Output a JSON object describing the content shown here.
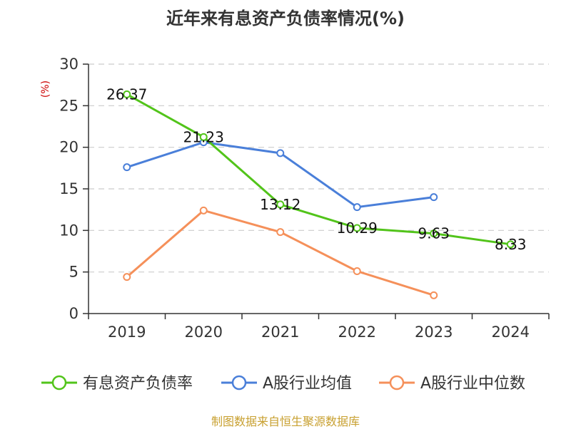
{
  "chart_data": {
    "type": "line",
    "title": "近年来有息资产负债率情况(%)",
    "ylabel": "(%)",
    "ylim": [
      0,
      30
    ],
    "yticks": [
      0,
      5,
      10,
      15,
      20,
      25,
      30
    ],
    "categories": [
      "2019",
      "2020",
      "2021",
      "2022",
      "2023",
      "2024"
    ],
    "grid": true,
    "legend": "bottom",
    "series": [
      {
        "name": "有息资产负债率",
        "color": "#52c41a",
        "values": [
          26.37,
          21.23,
          13.12,
          10.29,
          9.63,
          8.33
        ],
        "labels": [
          "26.37",
          "21.23",
          "13.12",
          "10.29",
          "9.63",
          "8.33"
        ]
      },
      {
        "name": "A股行业均值",
        "color": "#4a7fd9",
        "values": [
          17.6,
          20.6,
          19.3,
          12.8,
          14.0,
          null
        ]
      },
      {
        "name": "A股行业中位数",
        "color": "#f5905a",
        "values": [
          4.4,
          12.4,
          9.8,
          5.1,
          2.2,
          null
        ]
      }
    ]
  },
  "source": "制图数据来自恒生聚源数据库",
  "colors": {
    "axis": "#333333",
    "grid": "#cccccc",
    "unit_label": "#cc0000",
    "source_text": "#c8a030"
  }
}
